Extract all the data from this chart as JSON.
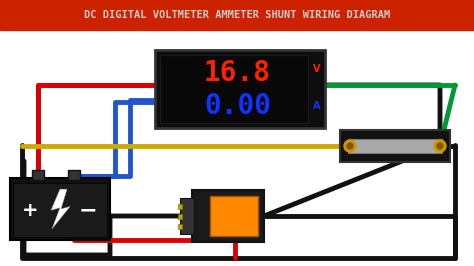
{
  "title": "DC DIGITAL VOLTMETER AMMETER SHUNT WIRING DIAGRAM",
  "title_color": "#cccccc",
  "title_bg": "#cc2200",
  "bg_color": "#ffffff",
  "volt_text": "16.8",
  "amp_text": "0.00",
  "volt_color": "#ff2200",
  "amp_color": "#1133ff",
  "unit_v": "V",
  "unit_a": "A",
  "wire_red": "#dd0000",
  "wire_blue": "#2255cc",
  "wire_green": "#009933",
  "wire_yellow": "#ccaa00",
  "wire_black": "#111111",
  "wire_lw": 3.5,
  "figw": 4.74,
  "figh": 2.66,
  "dpi": 100
}
